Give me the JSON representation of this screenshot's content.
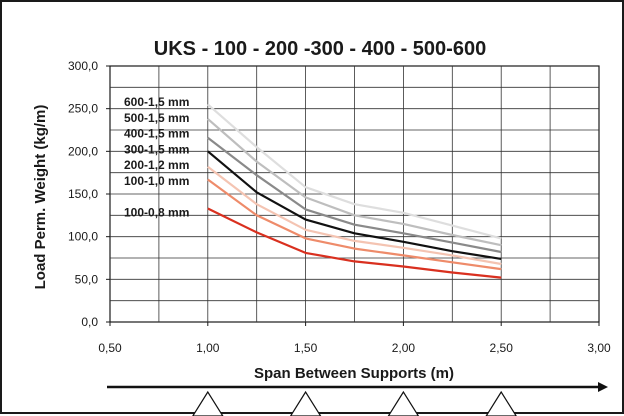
{
  "chart_data": {
    "type": "line",
    "title": "UKS - 100 - 200 -300 - 400 - 500-600",
    "xlabel": "Span Between Supports (m)",
    "ylabel": "Load Perm. Weight (kg/m)",
    "xlim": [
      0.5,
      3.0
    ],
    "ylim": [
      0,
      300
    ],
    "x_ticks": [
      "0,50",
      "1,00",
      "1,50",
      "2,00",
      "2,50",
      "3,00"
    ],
    "y_ticks": [
      "0,0",
      "50,0",
      "100,0",
      "150,0",
      "200,0",
      "250,0",
      "300,0"
    ],
    "grid": true,
    "series": [
      {
        "name": "600-1,5 mm",
        "color": "#dedede",
        "x": [
          1.0,
          1.25,
          1.5,
          1.75,
          2.0,
          2.25,
          2.5
        ],
        "y": [
          255,
          205,
          158,
          138,
          128,
          113,
          98
        ]
      },
      {
        "name": "500-1,5 mm",
        "color": "#bebebe",
        "x": [
          1.0,
          1.25,
          1.5,
          1.75,
          2.0,
          2.25,
          2.5
        ],
        "y": [
          238,
          188,
          146,
          125,
          115,
          102,
          90
        ]
      },
      {
        "name": "400-1,5 mm",
        "color": "#8a8a8a",
        "x": [
          1.0,
          1.25,
          1.5,
          1.75,
          2.0,
          2.25,
          2.5
        ],
        "y": [
          216,
          172,
          132,
          114,
          104,
          93,
          82
        ]
      },
      {
        "name": "300-1,5 mm",
        "color": "#111111",
        "x": [
          1.0,
          1.25,
          1.5,
          1.75,
          2.0,
          2.25,
          2.5
        ],
        "y": [
          200,
          152,
          120,
          104,
          94,
          83,
          74
        ]
      },
      {
        "name": "200-1,2 mm",
        "color": "#f4c4b2",
        "x": [
          1.0,
          1.25,
          1.5,
          1.75,
          2.0,
          2.25,
          2.5
        ],
        "y": [
          182,
          138,
          108,
          95,
          87,
          78,
          68
        ]
      },
      {
        "name": "100-1,0 mm",
        "color": "#ee8b6a",
        "x": [
          1.0,
          1.25,
          1.5,
          1.75,
          2.0,
          2.25,
          2.5
        ],
        "y": [
          167,
          125,
          98,
          86,
          78,
          70,
          62
        ]
      },
      {
        "name": "100-0,8 mm",
        "color": "#d9301f",
        "x": [
          1.0,
          1.25,
          1.5,
          1.75,
          2.0,
          2.25,
          2.5
        ],
        "y": [
          133,
          105,
          81,
          71,
          65,
          58,
          52
        ]
      }
    ],
    "support_markers": [
      1.0,
      1.5,
      2.0,
      2.5
    ]
  }
}
